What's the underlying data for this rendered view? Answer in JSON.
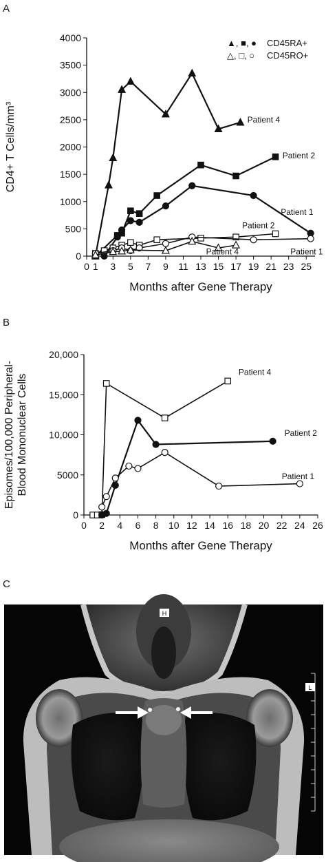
{
  "panels": {
    "a": "A",
    "b": "B",
    "c": "C"
  },
  "chart_data": [
    {
      "type": "line",
      "xlabel": "Months after Gene Therapy",
      "ylabel": "CD4+ T Cells/mm³",
      "xlim": [
        0,
        26
      ],
      "ylim": [
        0,
        4000
      ],
      "x_ticks": [
        0,
        1,
        3,
        5,
        7,
        9,
        11,
        13,
        15,
        17,
        19,
        21,
        23,
        25
      ],
      "y_ticks": [
        0,
        500,
        1000,
        1500,
        2000,
        2500,
        3000,
        3500,
        4000
      ],
      "legend": {
        "position": "top-right",
        "entries": [
          {
            "symbols": "▲, ■, ●",
            "label": "CD45RA+"
          },
          {
            "symbols": "△, □, ○",
            "label": "CD45RO+"
          }
        ]
      },
      "series": [
        {
          "name": "Patient 4",
          "subset": "CD45RA+",
          "marker": "triangle",
          "filled": true,
          "x": [
            1,
            2.5,
            3,
            4,
            5,
            9,
            12,
            15,
            17.5
          ],
          "y": [
            0,
            1300,
            1800,
            3050,
            3200,
            2600,
            3350,
            2330,
            2450
          ]
        },
        {
          "name": "Patient 2",
          "subset": "CD45RA+",
          "marker": "square",
          "filled": true,
          "x": [
            1,
            3.5,
            4,
            5,
            6,
            8,
            13,
            17,
            21.5
          ],
          "y": [
            0,
            380,
            420,
            830,
            780,
            1110,
            1670,
            1470,
            1820
          ]
        },
        {
          "name": "Patient 1",
          "subset": "CD45RA+",
          "marker": "circle",
          "filled": true,
          "x": [
            2,
            3.5,
            4,
            5,
            6,
            9,
            12,
            19,
            25.5
          ],
          "y": [
            0,
            350,
            480,
            650,
            620,
            920,
            1290,
            1110,
            420
          ]
        },
        {
          "name": "Patient 2",
          "subset": "CD45RO+",
          "marker": "square",
          "filled": false,
          "x": [
            1,
            2,
            3,
            4,
            5,
            6,
            8,
            13,
            17,
            21.5
          ],
          "y": [
            50,
            100,
            150,
            200,
            250,
            200,
            300,
            330,
            350,
            410
          ]
        },
        {
          "name": "Patient 1",
          "subset": "CD45RO+",
          "marker": "circle",
          "filled": false,
          "x": [
            1,
            3,
            4,
            5,
            6,
            9,
            12,
            19,
            25.5
          ],
          "y": [
            50,
            100,
            150,
            100,
            150,
            230,
            350,
            300,
            320
          ]
        },
        {
          "name": "Patient 4",
          "subset": "CD45RO+",
          "marker": "triangle",
          "filled": false,
          "x": [
            1,
            3,
            4,
            5,
            9,
            12,
            15,
            17
          ],
          "y": [
            20,
            80,
            90,
            110,
            100,
            270,
            150,
            200
          ]
        }
      ],
      "annotations": [
        {
          "text": "Patient 4",
          "x": 18.3,
          "y": 2500
        },
        {
          "text": "Patient 2",
          "x": 22.3,
          "y": 1840
        },
        {
          "text": "Patient 1",
          "x": 22.1,
          "y": 810
        },
        {
          "text": "Patient 2",
          "x": 17.7,
          "y": 560
        },
        {
          "text": "Patient 4",
          "x": 13.6,
          "y": 80
        },
        {
          "text": "Patient 1",
          "x": 23.2,
          "y": 80
        }
      ]
    },
    {
      "type": "line",
      "xlabel": "Months after Gene Therapy",
      "ylabel": "Episomes/100,000 Peripheral-Blood Mononuclear Cells",
      "ylabel_lines": [
        "Episomes/100,000 Peripheral-",
        "Blood Mononuclear Cells"
      ],
      "xlim": [
        0,
        26
      ],
      "ylim": [
        0,
        20000
      ],
      "x_ticks": [
        0,
        2,
        4,
        6,
        8,
        10,
        12,
        14,
        16,
        18,
        20,
        22,
        24,
        26
      ],
      "y_ticks": [
        0,
        5000,
        10000,
        15000,
        20000
      ],
      "y_tick_labels": [
        "0",
        "5000",
        "10,000",
        "15,000",
        "20,000"
      ],
      "series": [
        {
          "name": "Patient 4",
          "marker": "square",
          "filled": false,
          "x": [
            1,
            1.5,
            2,
            2.5,
            9,
            16
          ],
          "y": [
            0,
            0,
            50,
            16400,
            12100,
            16700
          ]
        },
        {
          "name": "Patient 2",
          "marker": "circle",
          "filled": true,
          "x": [
            2,
            2.5,
            3.5,
            6,
            8,
            21
          ],
          "y": [
            0,
            200,
            3700,
            11800,
            8800,
            9200
          ]
        },
        {
          "name": "Patient 1",
          "marker": "circle",
          "filled": false,
          "x": [
            2,
            2.5,
            3.5,
            5,
            6,
            9,
            15,
            24
          ],
          "y": [
            1000,
            2300,
            4600,
            6100,
            5800,
            7800,
            3600,
            3900
          ]
        }
      ],
      "annotations": [
        {
          "text": "Patient 4",
          "x": 17.2,
          "y": 17800
        },
        {
          "text": "Patient 2",
          "x": 22.3,
          "y": 10200
        },
        {
          "text": "Patient 1",
          "x": 22.0,
          "y": 4800
        }
      ]
    }
  ],
  "mri": {
    "marker_h": "H",
    "marker_l": "L"
  }
}
